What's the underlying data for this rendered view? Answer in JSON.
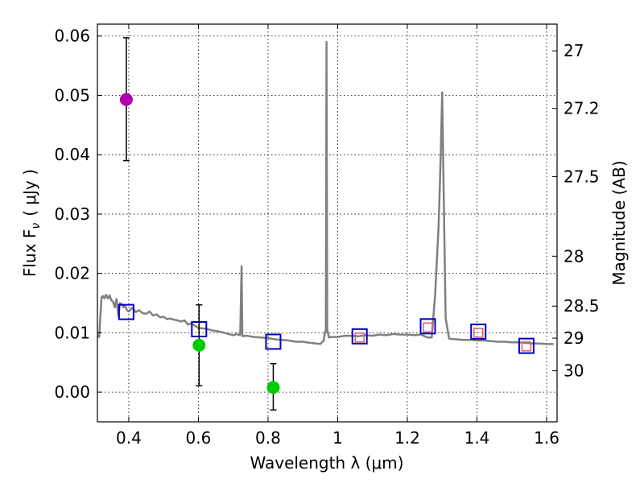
{
  "chart_data": {
    "type": "scatter",
    "xlabel": "Wavelength  λ (μm)",
    "ylabel": "Flux  F",
    "ylabel_subscript": "ν",
    "ylabel_unit": "( μJy )",
    "y2label": "Magnitude (AB)",
    "xlim": [
      0.31,
      1.63
    ],
    "ylim": [
      -0.005,
      0.062
    ],
    "grid": true,
    "x_ticks": [
      0.4,
      0.6,
      0.8,
      1.0,
      1.2,
      1.4,
      1.6
    ],
    "x_tick_labels": [
      "0.4",
      "0.6",
      "0.8",
      "1",
      "1.2",
      "1.4",
      "1.6"
    ],
    "y_ticks": [
      0.0,
      0.01,
      0.02,
      0.03,
      0.04,
      0.05,
      0.06
    ],
    "y_tick_labels": [
      "0.00",
      "0.01",
      "0.02",
      "0.03",
      "0.04",
      "0.05",
      "0.06"
    ],
    "y2_ticks": [
      {
        "label": "27",
        "flux": 0.0575
      },
      {
        "label": "27.2",
        "flux": 0.0478
      },
      {
        "label": "27.5",
        "flux": 0.0363
      },
      {
        "label": "28",
        "flux": 0.0229
      },
      {
        "label": "28.5",
        "flux": 0.0145
      },
      {
        "label": "29",
        "flux": 0.0091
      },
      {
        "label": "30",
        "flux": 0.0036
      }
    ],
    "series": [
      {
        "name": "model spectrum",
        "kind": "line",
        "color": "#808080",
        "x": [
          0.31,
          0.315,
          0.318,
          0.322,
          0.326,
          0.33,
          0.335,
          0.34,
          0.345,
          0.35,
          0.355,
          0.36,
          0.365,
          0.37,
          0.375,
          0.38,
          0.385,
          0.39,
          0.395,
          0.4,
          0.41,
          0.42,
          0.43,
          0.44,
          0.45,
          0.46,
          0.47,
          0.48,
          0.49,
          0.5,
          0.51,
          0.52,
          0.53,
          0.54,
          0.55,
          0.56,
          0.57,
          0.58,
          0.59,
          0.6,
          0.62,
          0.64,
          0.66,
          0.68,
          0.7,
          0.71,
          0.72,
          0.724,
          0.726,
          0.728,
          0.732,
          0.74,
          0.76,
          0.78,
          0.8,
          0.82,
          0.84,
          0.86,
          0.88,
          0.9,
          0.92,
          0.94,
          0.95,
          0.955,
          0.96,
          0.963,
          0.966,
          0.968,
          0.97,
          0.975,
          0.98,
          1.0,
          1.02,
          1.04,
          1.06,
          1.08,
          1.1,
          1.12,
          1.14,
          1.16,
          1.18,
          1.2,
          1.22,
          1.24,
          1.25,
          1.26,
          1.27,
          1.28,
          1.29,
          1.296,
          1.3,
          1.304,
          1.31,
          1.32,
          1.34,
          1.36,
          1.38,
          1.4,
          1.42,
          1.44,
          1.46,
          1.48,
          1.5,
          1.52,
          1.54,
          1.56,
          1.58,
          1.6,
          1.62
        ],
        "y": [
          0.0095,
          0.0093,
          0.0125,
          0.016,
          0.0162,
          0.0158,
          0.0164,
          0.0158,
          0.0163,
          0.0155,
          0.0152,
          0.0143,
          0.0157,
          0.0128,
          0.015,
          0.0148,
          0.0143,
          0.0145,
          0.0138,
          0.0136,
          0.0142,
          0.0135,
          0.0138,
          0.0133,
          0.0132,
          0.0136,
          0.0129,
          0.0131,
          0.0126,
          0.0127,
          0.0123,
          0.0124,
          0.0122,
          0.0121,
          0.0119,
          0.0121,
          0.0114,
          0.0116,
          0.0112,
          0.0108,
          0.0107,
          0.0104,
          0.0102,
          0.0099,
          0.0096,
          0.0098,
          0.0096,
          0.0212,
          0.0098,
          0.0094,
          0.0095,
          0.0095,
          0.0093,
          0.0092,
          0.0091,
          0.0089,
          0.0088,
          0.0087,
          0.0085,
          0.0085,
          0.0083,
          0.0082,
          0.0081,
          0.0084,
          0.0087,
          0.01,
          0.0105,
          0.059,
          0.0105,
          0.0092,
          0.0093,
          0.0093,
          0.0095,
          0.0095,
          0.0094,
          0.0096,
          0.0095,
          0.0097,
          0.0096,
          0.0098,
          0.0097,
          0.0097,
          0.0096,
          0.0097,
          0.0094,
          0.0092,
          0.0092,
          0.0165,
          0.0282,
          0.04,
          0.0505,
          0.035,
          0.0125,
          0.009,
          0.0089,
          0.0088,
          0.0088,
          0.0087,
          0.0087,
          0.0086,
          0.0085,
          0.0085,
          0.0084,
          0.0084,
          0.0083,
          0.0082,
          0.0082,
          0.0081,
          0.0081
        ]
      },
      {
        "name": "model photometry",
        "kind": "open-square",
        "color": "#0000cc",
        "x": [
          0.393,
          0.602,
          0.815,
          1.063,
          1.259,
          1.404,
          1.542
        ],
        "y": [
          0.0135,
          0.0106,
          0.0085,
          0.0094,
          0.0111,
          0.0102,
          0.0078
        ]
      },
      {
        "name": "observed photometry (inner)",
        "kind": "open-square-small",
        "color": "#e06060",
        "x": [
          1.063,
          1.259,
          1.404,
          1.542
        ],
        "y": [
          0.0092,
          0.0109,
          0.01,
          0.0077
        ]
      },
      {
        "name": "observed detection",
        "kind": "filled-circle",
        "color": "#b000b0",
        "x": [
          0.393
        ],
        "y": [
          0.0493
        ],
        "yerr_low": [
          0.039
        ],
        "yerr_high": [
          0.0597
        ]
      },
      {
        "name": "observed low S/N",
        "kind": "filled-circle",
        "color": "#00cc00",
        "x": [
          0.602,
          0.815
        ],
        "y": [
          0.0079,
          0.0008
        ],
        "yerr_low": [
          0.0011,
          -0.003
        ],
        "yerr_high": [
          0.0147,
          0.0048
        ]
      }
    ]
  }
}
